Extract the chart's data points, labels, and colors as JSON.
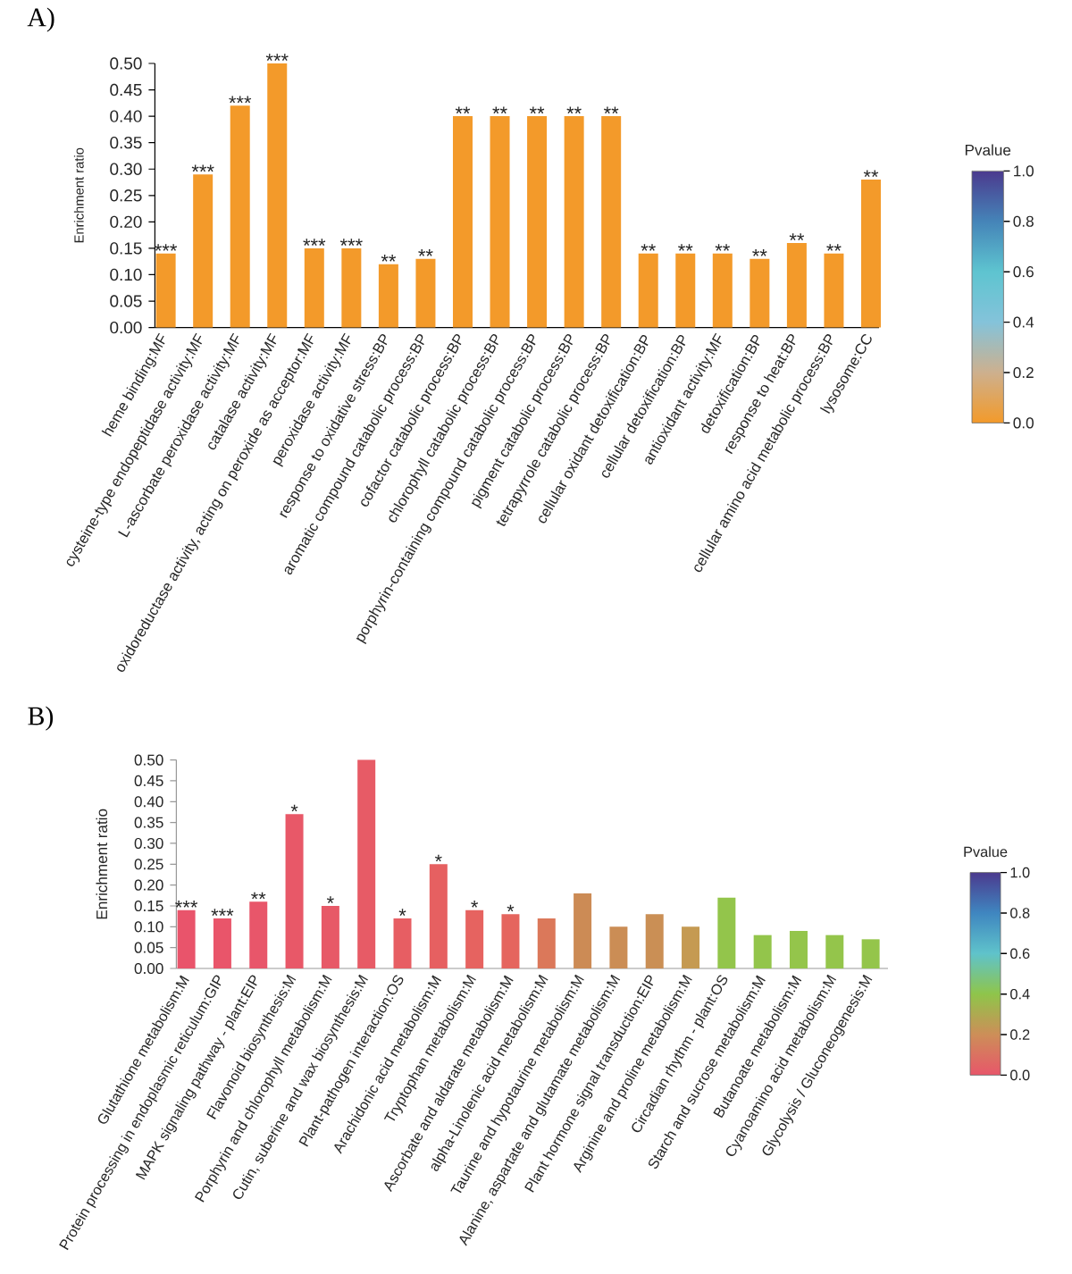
{
  "chart_data": [
    {
      "type": "bar",
      "title": "A)",
      "ylabel": "Enrichment ratio",
      "categories": [
        "heme binding:MF",
        "cysteine-type endopeptidase activity:MF",
        "L-ascorbate peroxidase activity:MF",
        "catalase activity:MF",
        "oxidoreductase activity, acting on peroxide as acceptor:MF",
        "peroxidase activity:MF",
        "response to oxidative stress:BP",
        "aromatic compound catabolic process:BP",
        "cofactor catabolic process:BP",
        "chlorophyll catabolic process:BP",
        "porphyrin-containing compound catabolic process:BP",
        "pigment catabolic process:BP",
        "tetrapyrrole catabolic process:BP",
        "cellular oxidant detoxification:BP",
        "cellular detoxification:BP",
        "antioxidant activity:MF",
        "detoxification:BP",
        "response to heat:BP",
        "cellular amino acid metabolic process:BP",
        "lysosome:CC"
      ],
      "values": [
        0.14,
        0.29,
        0.42,
        0.5,
        0.15,
        0.15,
        0.12,
        0.13,
        0.4,
        0.4,
        0.4,
        0.4,
        0.4,
        0.14,
        0.14,
        0.14,
        0.13,
        0.16,
        0.14,
        0.28
      ],
      "colors": [
        "#f39a2a",
        "#f39a2a",
        "#f39a2a",
        "#f39a2a",
        "#f39a2a",
        "#f39a2a",
        "#f39a2a",
        "#f39a2a",
        "#f39a2a",
        "#f39a2a",
        "#f39a2a",
        "#f39a2a",
        "#f39a2a",
        "#f39a2a",
        "#f39a2a",
        "#f39a2a",
        "#f39a2a",
        "#f39a2a",
        "#f39a2a",
        "#f39a2a"
      ],
      "value_labels": [
        "***",
        "***",
        "***",
        "***",
        "***",
        "***",
        "**",
        "**",
        "**",
        "**",
        "**",
        "**",
        "**",
        "**",
        "**",
        "**",
        "**",
        "**",
        "**",
        "**"
      ],
      "ylim": [
        0,
        0.5
      ],
      "yticks": [
        {
          "value": 0,
          "label": "0.00"
        },
        {
          "value": 0.05,
          "label": "0.05"
        },
        {
          "value": 0.1,
          "label": "0.10"
        },
        {
          "value": 0.15,
          "label": "0.15"
        },
        {
          "value": 0.2,
          "label": "0.20"
        },
        {
          "value": 0.25,
          "label": "0.25"
        },
        {
          "value": 0.3,
          "label": "0.30"
        },
        {
          "value": 0.35,
          "label": "0.35"
        },
        {
          "value": 0.4,
          "label": "0.40"
        },
        {
          "value": 0.45,
          "label": "0.45"
        },
        {
          "value": 0.5,
          "label": "0.50"
        }
      ],
      "clabel": "Pvalue",
      "clim": [
        0,
        1
      ],
      "cticks": [
        {
          "value": 0,
          "label": "0.0"
        },
        {
          "value": 0.2,
          "label": "0.2"
        },
        {
          "value": 0.4,
          "label": "0.4"
        },
        {
          "value": 0.6,
          "label": "0.6"
        },
        {
          "value": 0.8,
          "label": "0.8"
        },
        {
          "value": 1,
          "label": "1.0"
        }
      ]
    },
    {
      "type": "bar",
      "title": "B)",
      "ylabel": "Enrichment ratio",
      "categories": [
        "Glutathione metabolism:M",
        "Protein processing in endoplasmic reticulum:GIP",
        "MAPK signaling pathway - plant:EIP",
        "Flavonoid biosynthesis:M",
        "Porphyrin and chlorophyll metabolism:M",
        "Cutin, suberine and wax biosynthesis:M",
        "Plant-pathogen interaction:OS",
        "Arachidonic acid metabolism:M",
        "Tryptophan metabolism:M",
        "Ascorbate and aldarate metabolism:M",
        "alpha-Linolenic acid metabolism:M",
        "Taurine and hypotaurine metabolism:M",
        "Alanine, aspartate and glutamate metabolism:M",
        "Plant hormone signal transduction:EIP",
        "Arginine and proline metabolism:M",
        "Circadian rhythm - plant:OS",
        "Starch and sucrose metabolism:M",
        "Butanoate metabolism:M",
        "Cyanoamino acid metabolism:M",
        "Glycolysis / Gluconeogenesis:M"
      ],
      "values": [
        0.14,
        0.12,
        0.16,
        0.37,
        0.15,
        0.5,
        0.12,
        0.25,
        0.14,
        0.13,
        0.12,
        0.18,
        0.1,
        0.13,
        0.1,
        0.17,
        0.08,
        0.09,
        0.08,
        0.07
      ],
      "colors": [
        "#e9546b",
        "#e9556a",
        "#e8566a",
        "#e85868",
        "#e75967",
        "#e75b66",
        "#e75e63",
        "#e66061",
        "#e66360",
        "#e5655e",
        "#db785a",
        "#cc8b55",
        "#cb8d55",
        "#ca8f55",
        "#c59a52",
        "#93c54b",
        "#93c54b",
        "#94c54b",
        "#94c54b",
        "#94c54b"
      ],
      "value_labels": [
        "***",
        "***",
        "**",
        "*",
        "*",
        null,
        "*",
        "*",
        "*",
        "*",
        null,
        null,
        null,
        null,
        null,
        null,
        null,
        null,
        null,
        null
      ],
      "ylim": [
        0,
        0.5
      ],
      "yticks": [
        {
          "value": 0,
          "label": "0.00"
        },
        {
          "value": 0.05,
          "label": "0.05"
        },
        {
          "value": 0.1,
          "label": "0.10"
        },
        {
          "value": 0.15,
          "label": "0.15"
        },
        {
          "value": 0.2,
          "label": "0.20"
        },
        {
          "value": 0.25,
          "label": "0.25"
        },
        {
          "value": 0.3,
          "label": "0.30"
        },
        {
          "value": 0.35,
          "label": "0.35"
        },
        {
          "value": 0.4,
          "label": "0.40"
        },
        {
          "value": 0.45,
          "label": "0.45"
        },
        {
          "value": 0.5,
          "label": "0.50"
        }
      ],
      "clabel": "Pvalue",
      "clim": [
        0,
        1
      ],
      "cticks": [
        {
          "value": 0,
          "label": "0.0"
        },
        {
          "value": 0.2,
          "label": "0.2"
        },
        {
          "value": 0.4,
          "label": "0.4"
        },
        {
          "value": 0.6,
          "label": "0.6"
        },
        {
          "value": 0.8,
          "label": "0.8"
        },
        {
          "value": 1,
          "label": "1.0"
        }
      ]
    }
  ]
}
